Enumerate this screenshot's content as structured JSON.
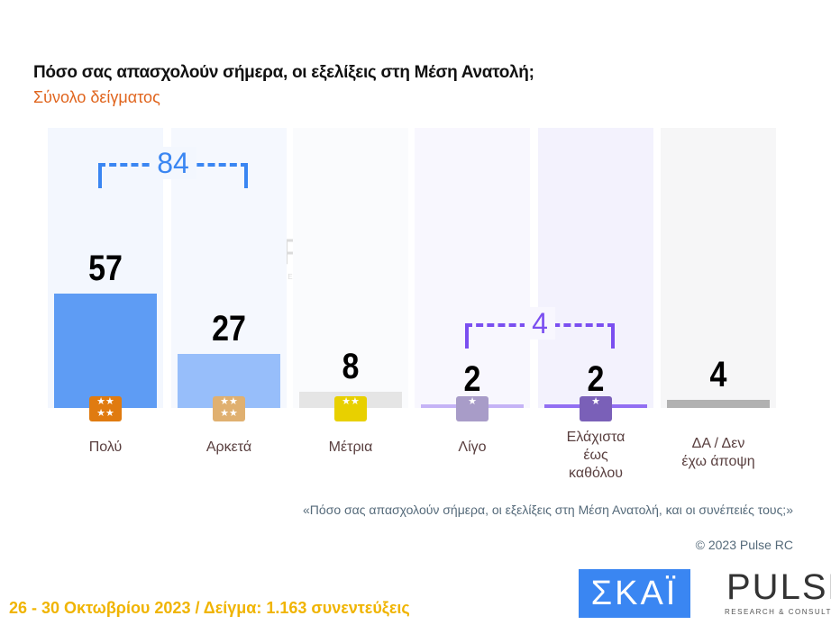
{
  "header": {
    "title": "Πόσο σας απασχολούν σήμερα, οι εξελίξεις στη Μέση Ανατολή;",
    "subtitle": "Σύνολο δείγματος"
  },
  "chart_data": {
    "type": "bar",
    "categories": [
      "Πολύ",
      "Αρκετά",
      "Μέτρια",
      "Λίγο",
      "Ελάχιστα έως καθόλου",
      "ΔΑ / Δεν έχω άποψη"
    ],
    "values": [
      57,
      27,
      8,
      2,
      2,
      4
    ],
    "unit": "%",
    "groups": [
      {
        "label": "84",
        "members": [
          0,
          1
        ],
        "color": "#3a86f2"
      },
      {
        "label": "4",
        "members": [
          3,
          4
        ],
        "color": "#7b4ff0"
      }
    ],
    "bar_colors": [
      "#3a86f2",
      "#80b0fa",
      "#e0e0e0",
      "#b9a3f5",
      "#7b4ff0",
      "#a0a0a0"
    ],
    "bg_colors": [
      "#f3f7fe",
      "#f5f8fe",
      "#fafbfd",
      "#f8f7fe",
      "#f3f2fd",
      "#f6f6f7"
    ],
    "badge_colors": [
      "#e07b10",
      "#e0b070",
      "#e8d000",
      "#a89cc8",
      "#7a60b8",
      "transparent"
    ],
    "title": "Πόσο σας απασχολούν σήμερα, οι εξελίξεις στη Μέση Ανατολή;",
    "ylim": [
      0,
      100
    ]
  },
  "note": "«Πόσο  σας απασχολούν σήμερα, οι εξελίξεις στη Μέση Ανατολή, και οι συνέπειές τους;»",
  "copyright": "© 2023 Pulse RC",
  "footer": "26 - 30  Οκτωβρίου  2023  /  Δείγμα:  1.163 συνεντεύξεις",
  "logos": {
    "skai": "ΣΚΑΪ",
    "pulse": "PULSE",
    "pulse_sub": "RESEARCH & CONSULTING"
  }
}
